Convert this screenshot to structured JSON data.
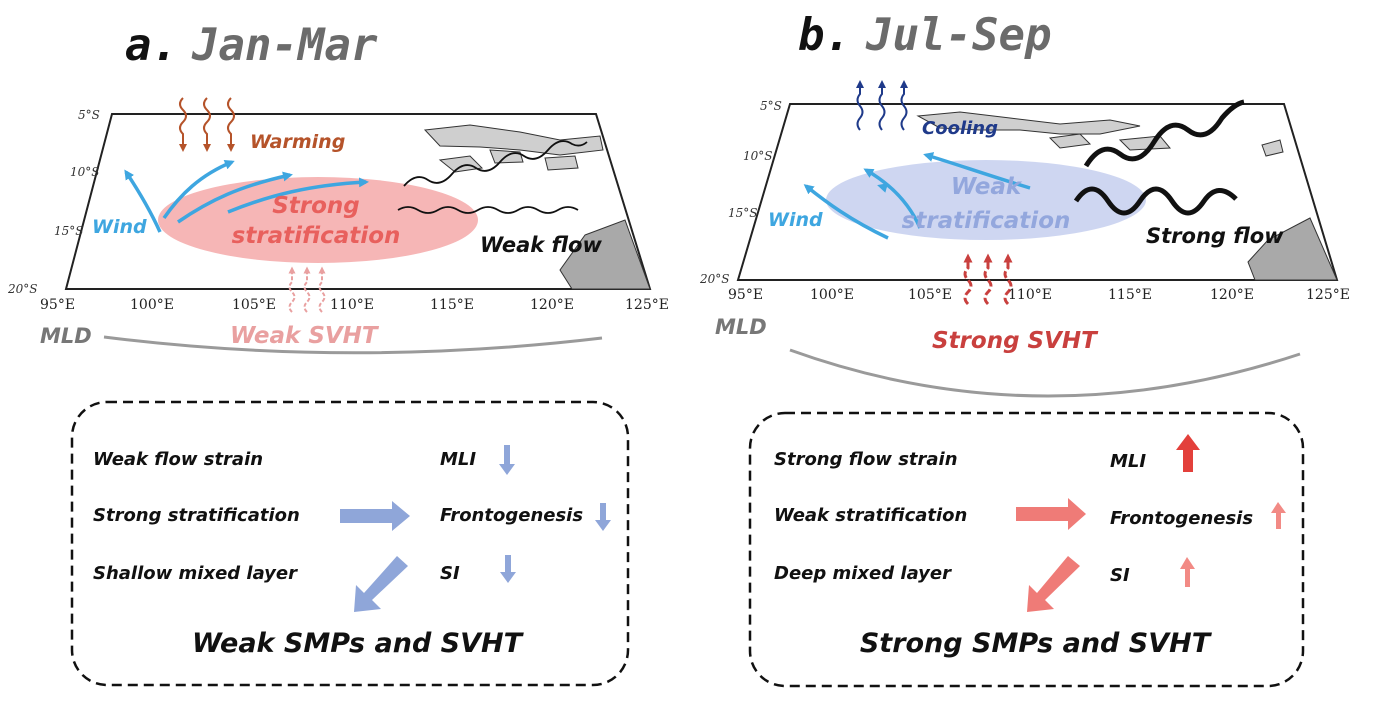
{
  "colors": {
    "warming": "#b5532a",
    "cooling": "#1f3a8a",
    "wind": "#3ea6e0",
    "strong_stratification_fill": "#f4a9a9",
    "strong_stratification_text": "#e8605d",
    "weak_stratification_fill": "#c9d2ef",
    "weak_stratification_text": "#93a7dd",
    "weak_svht": "#e9a0a0",
    "strong_svht": "#c9403e",
    "mld": "#9a9a9a",
    "down_arrow": "#8fa6d9",
    "up_arrow_strong": "#e3403b",
    "up_arrow_light": "#f28a85",
    "land": "#cfcfcf"
  },
  "panels": [
    {
      "letter": "a.",
      "season": "Jan-Mar",
      "surface_flux_label": "Warming",
      "wind_label": "Wind",
      "stratification_label": [
        "Strong",
        "stratification"
      ],
      "flow_label": "Weak flow",
      "svht_label": "Weak SVHT",
      "mld_label": "MLD",
      "lat_ticks": [
        "5°S",
        "10°S",
        "15°S",
        "20°S"
      ],
      "lon_ticks": [
        "95°E",
        "100°E",
        "105°E",
        "110°E",
        "115°E",
        "120°E",
        "125°E"
      ],
      "summary": {
        "rows": [
          {
            "cause": "Weak flow strain",
            "effect": "MLI",
            "trend": "down"
          },
          {
            "cause": "Strong stratification",
            "effect": "Frontogenesis",
            "trend": "down"
          },
          {
            "cause": "Shallow mixed layer",
            "effect": "SI",
            "trend": "down"
          }
        ],
        "conclusion": "Weak SMPs and SVHT"
      }
    },
    {
      "letter": "b.",
      "season": "Jul-Sep",
      "surface_flux_label": "Cooling",
      "wind_label": "Wind",
      "stratification_label": [
        "Weak",
        "stratification"
      ],
      "flow_label": "Strong flow",
      "svht_label": "Strong SVHT",
      "mld_label": "MLD",
      "lat_ticks": [
        "5°S",
        "10°S",
        "15°S",
        "20°S"
      ],
      "lon_ticks": [
        "95°E",
        "100°E",
        "105°E",
        "110°E",
        "115°E",
        "120°E",
        "125°E"
      ],
      "summary": {
        "rows": [
          {
            "cause": "Strong flow strain",
            "effect": "MLI",
            "trend": "up"
          },
          {
            "cause": "Weak stratification",
            "effect": "Frontogenesis",
            "trend": "up"
          },
          {
            "cause": "Deep mixed layer",
            "effect": "SI",
            "trend": "up"
          }
        ],
        "conclusion": "Strong SMPs and SVHT"
      }
    }
  ]
}
